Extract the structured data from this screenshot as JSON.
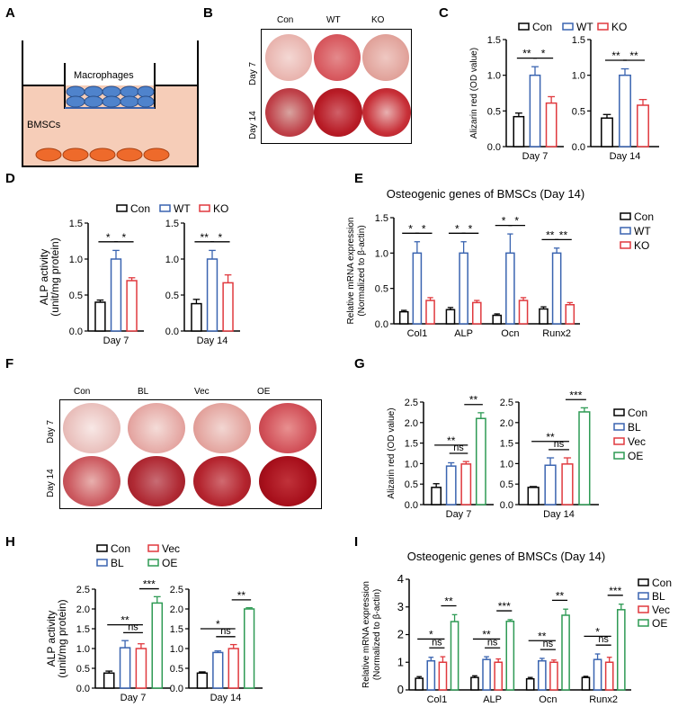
{
  "panel_labels": {
    "A": "A",
    "B": "B",
    "C": "C",
    "D": "D",
    "E": "E",
    "F": "F",
    "G": "G",
    "H": "H",
    "I": "I"
  },
  "panelA": {
    "upper_label": "Macrophages",
    "lower_label": "BMSCs"
  },
  "panelB": {
    "columns": [
      "Con",
      "WT",
      "KO"
    ],
    "rows": [
      "Day 7",
      "Day 14"
    ]
  },
  "panelF": {
    "columns": [
      "Con",
      "BL",
      "Vec",
      "OE"
    ],
    "rows": [
      "Day 7",
      "Day 14"
    ]
  },
  "colors": {
    "Con": "#000000",
    "WT": "#3a64b0",
    "KO": "#e0393e",
    "BL": "#3a64b0",
    "Vec": "#e0393e",
    "OE": "#2e9a54"
  },
  "chart_data": [
    {
      "panel": "C",
      "type": "bar",
      "title": "",
      "ylabel": [
        "Alizarin red (OD value)"
      ],
      "ylim": [
        0,
        1.5
      ],
      "yticks": [
        "0.0",
        "0.5",
        "1.0",
        "1.5"
      ],
      "grid": false,
      "legend": "top",
      "categories": [
        "Day 7"
      ],
      "series": [
        {
          "name": "Con",
          "values": [
            0.42
          ],
          "errors": [
            0.05
          ]
        },
        {
          "name": "WT",
          "values": [
            1.0
          ],
          "errors": [
            0.12
          ]
        },
        {
          "name": "KO",
          "values": [
            0.61
          ],
          "errors": [
            0.09
          ]
        }
      ],
      "significance": [
        {
          "category": 0,
          "pair": [
            0,
            1
          ],
          "label": "**"
        },
        {
          "category": 0,
          "pair": [
            1,
            2
          ],
          "label": "*"
        }
      ]
    },
    {
      "panel": "C",
      "type": "bar",
      "title": "",
      "ylabel": [],
      "ylim": [
        0,
        1.5
      ],
      "yticks": [
        "0.0",
        "0.5",
        "1.0",
        "1.5"
      ],
      "grid": false,
      "categories": [
        "Day 14"
      ],
      "series": [
        {
          "name": "Con",
          "values": [
            0.4
          ],
          "errors": [
            0.05
          ]
        },
        {
          "name": "WT",
          "values": [
            1.0
          ],
          "errors": [
            0.09
          ]
        },
        {
          "name": "KO",
          "values": [
            0.58
          ],
          "errors": [
            0.08
          ]
        }
      ],
      "significance": [
        {
          "category": 0,
          "pair": [
            0,
            1
          ],
          "label": "**"
        },
        {
          "category": 0,
          "pair": [
            1,
            2
          ],
          "label": "**"
        }
      ]
    },
    {
      "panel": "D",
      "type": "bar",
      "title": "",
      "ylabel": [
        "ALP activity",
        "(unit/mg protein)"
      ],
      "ylim": [
        0,
        1.5
      ],
      "yticks": [
        "0.0",
        "0.5",
        "1.0",
        "1.5"
      ],
      "grid": false,
      "legend": "top",
      "categories": [
        "Day 7"
      ],
      "series": [
        {
          "name": "Con",
          "values": [
            0.4
          ],
          "errors": [
            0.03
          ]
        },
        {
          "name": "WT",
          "values": [
            1.0
          ],
          "errors": [
            0.12
          ]
        },
        {
          "name": "KO",
          "values": [
            0.7
          ],
          "errors": [
            0.04
          ]
        }
      ],
      "significance": [
        {
          "category": 0,
          "pair": [
            0,
            1
          ],
          "label": "*"
        },
        {
          "category": 0,
          "pair": [
            1,
            2
          ],
          "label": "*"
        }
      ]
    },
    {
      "panel": "D",
      "type": "bar",
      "title": "",
      "ylabel": [],
      "ylim": [
        0,
        1.5
      ],
      "yticks": [
        "0.0",
        "0.5",
        "1.0",
        "1.5"
      ],
      "grid": false,
      "categories": [
        "Day 14"
      ],
      "series": [
        {
          "name": "Con",
          "values": [
            0.38
          ],
          "errors": [
            0.06
          ]
        },
        {
          "name": "WT",
          "values": [
            1.0
          ],
          "errors": [
            0.12
          ]
        },
        {
          "name": "KO",
          "values": [
            0.67
          ],
          "errors": [
            0.11
          ]
        }
      ],
      "significance": [
        {
          "category": 0,
          "pair": [
            0,
            1
          ],
          "label": "**"
        },
        {
          "category": 0,
          "pair": [
            1,
            2
          ],
          "label": "*"
        }
      ]
    },
    {
      "panel": "E",
      "type": "bar",
      "title": "Osteogenic genes of BMSCs (Day 14)",
      "ylabel": [
        "Relative mRNA expression",
        "(Normalized to β-actin)"
      ],
      "ylim": [
        0,
        1.5
      ],
      "yticks": [
        "0.0",
        "0.5",
        "1.0",
        "1.5"
      ],
      "grid": false,
      "legend": "right",
      "categories": [
        "Col1",
        "ALP",
        "Ocn",
        "Runx2"
      ],
      "series": [
        {
          "name": "Con",
          "values": [
            0.17,
            0.2,
            0.12,
            0.21
          ],
          "errors": [
            0.02,
            0.03,
            0.02,
            0.03
          ]
        },
        {
          "name": "WT",
          "values": [
            1.0,
            1.0,
            1.0,
            1.0
          ],
          "errors": [
            0.16,
            0.16,
            0.27,
            0.07
          ]
        },
        {
          "name": "KO",
          "values": [
            0.33,
            0.3,
            0.33,
            0.27
          ],
          "errors": [
            0.04,
            0.03,
            0.04,
            0.03
          ]
        }
      ],
      "significance": [
        {
          "category": 0,
          "pair": [
            0,
            1
          ],
          "label": "*"
        },
        {
          "category": 0,
          "pair": [
            1,
            2
          ],
          "label": "*"
        },
        {
          "category": 1,
          "pair": [
            0,
            1
          ],
          "label": "*"
        },
        {
          "category": 1,
          "pair": [
            1,
            2
          ],
          "label": "*"
        },
        {
          "category": 2,
          "pair": [
            0,
            1
          ],
          "label": "*"
        },
        {
          "category": 2,
          "pair": [
            1,
            2
          ],
          "label": "*"
        },
        {
          "category": 3,
          "pair": [
            0,
            1
          ],
          "label": "**"
        },
        {
          "category": 3,
          "pair": [
            1,
            2
          ],
          "label": "**"
        }
      ]
    },
    {
      "panel": "G",
      "type": "bar",
      "title": "",
      "ylabel": [
        "Alizarin red (OD value)"
      ],
      "ylim": [
        0,
        2.5
      ],
      "yticks": [
        "0.0",
        "0.5",
        "1.0",
        "1.5",
        "2.0",
        "2.5"
      ],
      "grid": false,
      "legend": "right",
      "categories": [
        "Day 7"
      ],
      "series": [
        {
          "name": "Con",
          "values": [
            0.42
          ],
          "errors": [
            0.09
          ]
        },
        {
          "name": "BL",
          "values": [
            0.94
          ],
          "errors": [
            0.08
          ]
        },
        {
          "name": "Vec",
          "values": [
            0.99
          ],
          "errors": [
            0.06
          ]
        },
        {
          "name": "OE",
          "values": [
            2.1
          ],
          "errors": [
            0.14
          ]
        }
      ],
      "significance": [
        {
          "category": 0,
          "pair": [
            1,
            2
          ],
          "label": "ns"
        },
        {
          "category": 0,
          "pair": [
            0,
            2
          ],
          "label": "**"
        },
        {
          "category": 0,
          "pair": [
            2,
            3
          ],
          "label": "**"
        }
      ]
    },
    {
      "panel": "G",
      "type": "bar",
      "title": "",
      "ylabel": [],
      "ylim": [
        0,
        2.5
      ],
      "yticks": [
        "0.0",
        "0.5",
        "1.0",
        "1.5",
        "2.0",
        "2.5"
      ],
      "grid": false,
      "categories": [
        "Day 14"
      ],
      "series": [
        {
          "name": "Con",
          "values": [
            0.42
          ],
          "errors": [
            0.02
          ]
        },
        {
          "name": "BL",
          "values": [
            0.96
          ],
          "errors": [
            0.18
          ]
        },
        {
          "name": "Vec",
          "values": [
            0.99
          ],
          "errors": [
            0.15
          ]
        },
        {
          "name": "OE",
          "values": [
            2.26
          ],
          "errors": [
            0.1
          ]
        }
      ],
      "significance": [
        {
          "category": 0,
          "pair": [
            1,
            2
          ],
          "label": "ns"
        },
        {
          "category": 0,
          "pair": [
            0,
            2
          ],
          "label": "**"
        },
        {
          "category": 0,
          "pair": [
            2,
            3
          ],
          "label": "***"
        }
      ]
    },
    {
      "panel": "H",
      "type": "bar",
      "title": "",
      "ylabel": [
        "ALP activity",
        "(unit/mg protein)"
      ],
      "ylim": [
        0,
        2.5
      ],
      "yticks": [
        "0.0",
        "0.5",
        "1.0",
        "1.5",
        "2.0",
        "2.5"
      ],
      "grid": false,
      "legend": "top",
      "categories": [
        "Day 7"
      ],
      "series": [
        {
          "name": "Con",
          "values": [
            0.38
          ],
          "errors": [
            0.05
          ]
        },
        {
          "name": "BL",
          "values": [
            1.02
          ],
          "errors": [
            0.18
          ]
        },
        {
          "name": "Vec",
          "values": [
            1.0
          ],
          "errors": [
            0.12
          ]
        },
        {
          "name": "OE",
          "values": [
            2.15
          ],
          "errors": [
            0.16
          ]
        }
      ],
      "significance": [
        {
          "category": 0,
          "pair": [
            1,
            2
          ],
          "label": "ns"
        },
        {
          "category": 0,
          "pair": [
            0,
            2
          ],
          "label": "**"
        },
        {
          "category": 0,
          "pair": [
            2,
            3
          ],
          "label": "***"
        }
      ]
    },
    {
      "panel": "H",
      "type": "bar",
      "title": "",
      "ylabel": [],
      "ylim": [
        0,
        2.5
      ],
      "yticks": [
        "0.0",
        "0.5",
        "1.0",
        "1.5",
        "2.0",
        "2.5"
      ],
      "grid": false,
      "categories": [
        "Day 14"
      ],
      "series": [
        {
          "name": "Con",
          "values": [
            0.38
          ],
          "errors": [
            0.03
          ]
        },
        {
          "name": "BL",
          "values": [
            0.9
          ],
          "errors": [
            0.04
          ]
        },
        {
          "name": "Vec",
          "values": [
            1.0
          ],
          "errors": [
            0.1
          ]
        },
        {
          "name": "OE",
          "values": [
            2.0
          ],
          "errors": [
            0.03
          ]
        }
      ],
      "significance": [
        {
          "category": 0,
          "pair": [
            1,
            2
          ],
          "label": "ns"
        },
        {
          "category": 0,
          "pair": [
            0,
            2
          ],
          "label": "*"
        },
        {
          "category": 0,
          "pair": [
            2,
            3
          ],
          "label": "**"
        }
      ]
    },
    {
      "panel": "I",
      "type": "bar",
      "title": "Osteogenic genes of BMSCs (Day 14)",
      "ylabel": [
        "Relative mRNA expression",
        "(Normalized to β-actin)"
      ],
      "ylim": [
        0,
        4
      ],
      "yticks": [
        "0",
        "1",
        "2",
        "3",
        "4"
      ],
      "grid": false,
      "legend": "right",
      "categories": [
        "Col1",
        "ALP",
        "Ocn",
        "Runx2"
      ],
      "series": [
        {
          "name": "Con",
          "values": [
            0.42,
            0.45,
            0.4,
            0.45
          ],
          "errors": [
            0.06,
            0.06,
            0.05,
            0.04
          ]
        },
        {
          "name": "BL",
          "values": [
            1.05,
            1.1,
            1.05,
            1.1
          ],
          "errors": [
            0.13,
            0.1,
            0.09,
            0.2
          ]
        },
        {
          "name": "Vec",
          "values": [
            1.0,
            1.0,
            1.0,
            1.0
          ],
          "errors": [
            0.2,
            0.12,
            0.08,
            0.18
          ]
        },
        {
          "name": "OE",
          "values": [
            2.47,
            2.48,
            2.7,
            2.9
          ],
          "errors": [
            0.25,
            0.06,
            0.22,
            0.2
          ]
        }
      ],
      "significance": [
        {
          "category": 0,
          "pair": [
            1,
            2
          ],
          "label": "ns"
        },
        {
          "category": 0,
          "pair": [
            0,
            2
          ],
          "label": "*"
        },
        {
          "category": 0,
          "pair": [
            2,
            3
          ],
          "label": "**"
        },
        {
          "category": 1,
          "pair": [
            1,
            2
          ],
          "label": "ns"
        },
        {
          "category": 1,
          "pair": [
            0,
            2
          ],
          "label": "**"
        },
        {
          "category": 1,
          "pair": [
            2,
            3
          ],
          "label": "***"
        },
        {
          "category": 2,
          "pair": [
            1,
            2
          ],
          "label": "ns"
        },
        {
          "category": 2,
          "pair": [
            0,
            2
          ],
          "label": "**"
        },
        {
          "category": 2,
          "pair": [
            2,
            3
          ],
          "label": "**"
        },
        {
          "category": 3,
          "pair": [
            1,
            2
          ],
          "label": "ns"
        },
        {
          "category": 3,
          "pair": [
            0,
            2
          ],
          "label": "*"
        },
        {
          "category": 3,
          "pair": [
            2,
            3
          ],
          "label": "***"
        }
      ]
    }
  ]
}
